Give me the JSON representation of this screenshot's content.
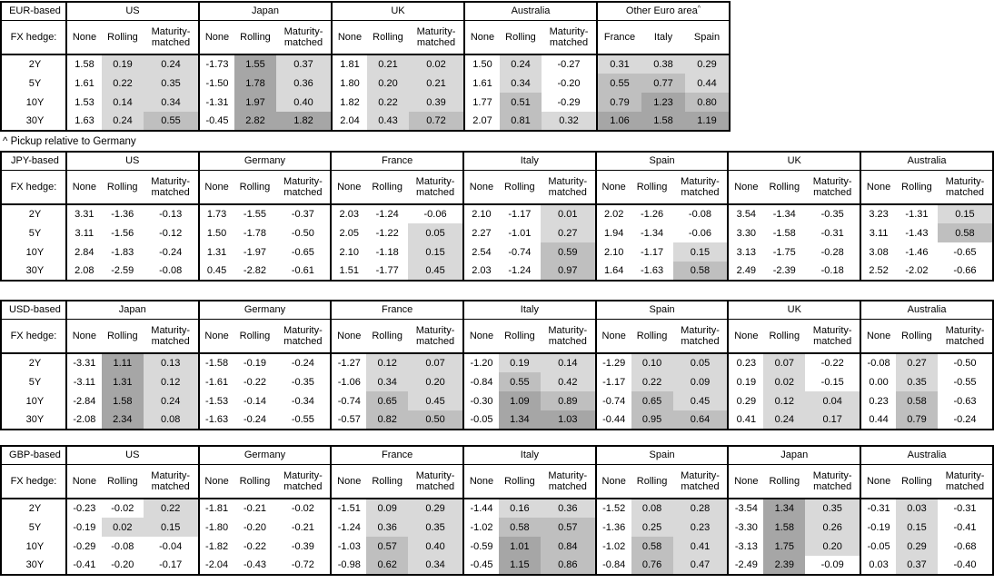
{
  "note": "^ Pickup relative to Germany",
  "col_headers": {
    "fx_hedge_label": "FX hedge:",
    "none": "None",
    "rolling": "Rolling",
    "maturity": "Maturity-matched"
  },
  "row_labels": [
    "2Y",
    "5Y",
    "10Y",
    "30Y"
  ],
  "shading": {
    "rule": "Shading applies to Rolling and Maturity-matched columns (and all Other Euro area columns): value < 0 white; 0 to 0.5 light; 0.5 to 1.0 mid; 1.0+ dark. None column never shaded.",
    "light": "#d9d9d9",
    "mid": "#bfbfbf",
    "dark": "#a6a6a6",
    "thresholds": [
      0,
      0.5,
      1.0
    ]
  },
  "tables": [
    {
      "base": "EUR-based",
      "groups": [
        {
          "name": "US",
          "rows": [
            [
              "1.58",
              "0.19",
              "0.24"
            ],
            [
              "1.61",
              "0.22",
              "0.35"
            ],
            [
              "1.53",
              "0.14",
              "0.34"
            ],
            [
              "1.63",
              "0.24",
              "0.55"
            ]
          ]
        },
        {
          "name": "Japan",
          "rows": [
            [
              "-1.73",
              "1.55",
              "0.37"
            ],
            [
              "-1.50",
              "1.78",
              "0.36"
            ],
            [
              "-1.31",
              "1.97",
              "0.40"
            ],
            [
              "-0.45",
              "2.82",
              "1.82"
            ]
          ]
        },
        {
          "name": "UK",
          "rows": [
            [
              "1.81",
              "0.21",
              "0.02"
            ],
            [
              "1.80",
              "0.20",
              "0.21"
            ],
            [
              "1.82",
              "0.22",
              "0.39"
            ],
            [
              "2.04",
              "0.43",
              "0.72"
            ]
          ]
        },
        {
          "name": "Australia",
          "rows": [
            [
              "1.50",
              "0.24",
              "-0.27"
            ],
            [
              "1.61",
              "0.34",
              "-0.20"
            ],
            [
              "1.77",
              "0.51",
              "-0.29"
            ],
            [
              "2.07",
              "0.81",
              "0.32"
            ]
          ]
        },
        {
          "name": "Other Euro area",
          "sup": "^",
          "type": "countries",
          "shade_all": true,
          "subheaders": [
            "France",
            "Italy",
            "Spain"
          ],
          "rows": [
            [
              "0.31",
              "0.38",
              "0.29"
            ],
            [
              "0.55",
              "0.77",
              "0.44"
            ],
            [
              "0.79",
              "1.23",
              "0.80"
            ],
            [
              "1.06",
              "1.58",
              "1.19"
            ]
          ]
        }
      ]
    },
    {
      "base": "JPY-based",
      "groups": [
        {
          "name": "US",
          "rows": [
            [
              "3.31",
              "-1.36",
              "-0.13"
            ],
            [
              "3.11",
              "-1.56",
              "-0.12"
            ],
            [
              "2.84",
              "-1.83",
              "-0.24"
            ],
            [
              "2.08",
              "-2.59",
              "-0.08"
            ]
          ]
        },
        {
          "name": "Germany",
          "rows": [
            [
              "1.73",
              "-1.55",
              "-0.37"
            ],
            [
              "1.50",
              "-1.78",
              "-0.50"
            ],
            [
              "1.31",
              "-1.97",
              "-0.65"
            ],
            [
              "0.45",
              "-2.82",
              "-0.61"
            ]
          ]
        },
        {
          "name": "France",
          "rows": [
            [
              "2.03",
              "-1.24",
              "-0.06"
            ],
            [
              "2.05",
              "-1.22",
              "0.05"
            ],
            [
              "2.10",
              "-1.18",
              "0.15"
            ],
            [
              "1.51",
              "-1.77",
              "0.45"
            ]
          ]
        },
        {
          "name": "Italy",
          "rows": [
            [
              "2.10",
              "-1.17",
              "0.01"
            ],
            [
              "2.27",
              "-1.01",
              "0.27"
            ],
            [
              "2.54",
              "-0.74",
              "0.59"
            ],
            [
              "2.03",
              "-1.24",
              "0.97"
            ]
          ]
        },
        {
          "name": "Spain",
          "rows": [
            [
              "2.02",
              "-1.26",
              "-0.08"
            ],
            [
              "1.94",
              "-1.34",
              "-0.06"
            ],
            [
              "2.10",
              "-1.17",
              "0.15"
            ],
            [
              "1.64",
              "-1.63",
              "0.58"
            ]
          ]
        },
        {
          "name": "UK",
          "rows": [
            [
              "3.54",
              "-1.34",
              "-0.35"
            ],
            [
              "3.30",
              "-1.58",
              "-0.31"
            ],
            [
              "3.13",
              "-1.75",
              "-0.28"
            ],
            [
              "2.49",
              "-2.39",
              "-0.18"
            ]
          ]
        },
        {
          "name": "Australia",
          "rows": [
            [
              "3.23",
              "-1.31",
              "0.15"
            ],
            [
              "3.11",
              "-1.43",
              "0.58"
            ],
            [
              "3.08",
              "-1.46",
              "-0.65"
            ],
            [
              "2.52",
              "-2.02",
              "-0.66"
            ]
          ]
        }
      ]
    },
    {
      "base": "USD-based",
      "groups": [
        {
          "name": "Japan",
          "rows": [
            [
              "-3.31",
              "1.11",
              "0.13"
            ],
            [
              "-3.11",
              "1.31",
              "0.12"
            ],
            [
              "-2.84",
              "1.58",
              "0.24"
            ],
            [
              "-2.08",
              "2.34",
              "0.08"
            ]
          ]
        },
        {
          "name": "Germany",
          "rows": [
            [
              "-1.58",
              "-0.19",
              "-0.24"
            ],
            [
              "-1.61",
              "-0.22",
              "-0.35"
            ],
            [
              "-1.53",
              "-0.14",
              "-0.34"
            ],
            [
              "-1.63",
              "-0.24",
              "-0.55"
            ]
          ]
        },
        {
          "name": "France",
          "rows": [
            [
              "-1.27",
              "0.12",
              "0.07"
            ],
            [
              "-1.06",
              "0.34",
              "0.20"
            ],
            [
              "-0.74",
              "0.65",
              "0.45"
            ],
            [
              "-0.57",
              "0.82",
              "0.50"
            ]
          ]
        },
        {
          "name": "Italy",
          "rows": [
            [
              "-1.20",
              "0.19",
              "0.14"
            ],
            [
              "-0.84",
              "0.55",
              "0.42"
            ],
            [
              "-0.30",
              "1.09",
              "0.89"
            ],
            [
              "-0.05",
              "1.34",
              "1.03"
            ]
          ]
        },
        {
          "name": "Spain",
          "rows": [
            [
              "-1.29",
              "0.10",
              "0.05"
            ],
            [
              "-1.17",
              "0.22",
              "0.09"
            ],
            [
              "-0.74",
              "0.65",
              "0.45"
            ],
            [
              "-0.44",
              "0.95",
              "0.64"
            ]
          ]
        },
        {
          "name": "UK",
          "rows": [
            [
              "0.23",
              "0.07",
              "-0.22"
            ],
            [
              "0.19",
              "0.02",
              "-0.15"
            ],
            [
              "0.29",
              "0.12",
              "0.04"
            ],
            [
              "0.41",
              "0.24",
              "0.17"
            ]
          ]
        },
        {
          "name": "Australia",
          "rows": [
            [
              "-0.08",
              "0.27",
              "-0.50"
            ],
            [
              "0.00",
              "0.35",
              "-0.55"
            ],
            [
              "0.23",
              "0.58",
              "-0.63"
            ],
            [
              "0.44",
              "0.79",
              "-0.24"
            ]
          ]
        }
      ]
    },
    {
      "base": "GBP-based",
      "groups": [
        {
          "name": "US",
          "rows": [
            [
              "-0.23",
              "-0.02",
              "0.22"
            ],
            [
              "-0.19",
              "0.02",
              "0.15"
            ],
            [
              "-0.29",
              "-0.08",
              "-0.04"
            ],
            [
              "-0.41",
              "-0.20",
              "-0.17"
            ]
          ]
        },
        {
          "name": "Germany",
          "rows": [
            [
              "-1.81",
              "-0.21",
              "-0.02"
            ],
            [
              "-1.80",
              "-0.20",
              "-0.21"
            ],
            [
              "-1.82",
              "-0.22",
              "-0.39"
            ],
            [
              "-2.04",
              "-0.43",
              "-0.72"
            ]
          ]
        },
        {
          "name": "France",
          "rows": [
            [
              "-1.51",
              "0.09",
              "0.29"
            ],
            [
              "-1.24",
              "0.36",
              "0.35"
            ],
            [
              "-1.03",
              "0.57",
              "0.40"
            ],
            [
              "-0.98",
              "0.62",
              "0.34"
            ]
          ]
        },
        {
          "name": "Italy",
          "rows": [
            [
              "-1.44",
              "0.16",
              "0.36"
            ],
            [
              "-1.02",
              "0.58",
              "0.57"
            ],
            [
              "-0.59",
              "1.01",
              "0.84"
            ],
            [
              "-0.45",
              "1.15",
              "0.86"
            ]
          ]
        },
        {
          "name": "Spain",
          "rows": [
            [
              "-1.52",
              "0.08",
              "0.28"
            ],
            [
              "-1.36",
              "0.25",
              "0.23"
            ],
            [
              "-1.02",
              "0.58",
              "0.41"
            ],
            [
              "-0.84",
              "0.76",
              "0.47"
            ]
          ]
        },
        {
          "name": "Japan",
          "rows": [
            [
              "-3.54",
              "1.34",
              "0.35"
            ],
            [
              "-3.30",
              "1.58",
              "0.26"
            ],
            [
              "-3.13",
              "1.75",
              "0.20"
            ],
            [
              "-2.49",
              "2.39",
              "-0.09"
            ]
          ]
        },
        {
          "name": "Australia",
          "rows": [
            [
              "-0.31",
              "0.03",
              "-0.31"
            ],
            [
              "-0.19",
              "0.15",
              "-0.41"
            ],
            [
              "-0.05",
              "0.29",
              "-0.68"
            ],
            [
              "0.03",
              "0.37",
              "-0.40"
            ]
          ]
        }
      ]
    }
  ]
}
